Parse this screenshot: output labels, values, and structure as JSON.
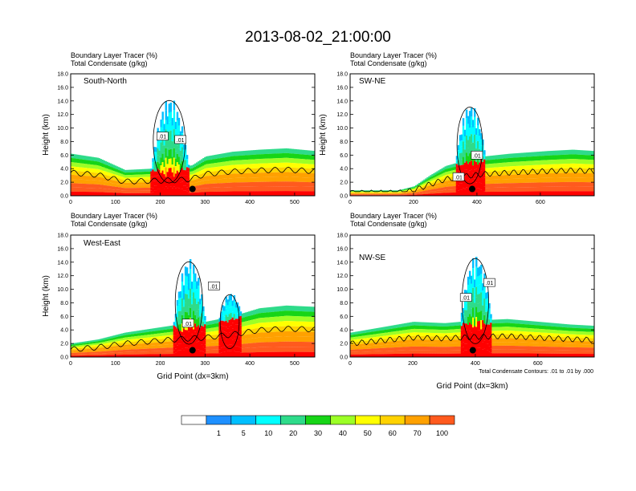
{
  "title": "2013-08-02_21:00:00",
  "colors": {
    "shades": [
      "#ffffff",
      "#1e90ff",
      "#00bfff",
      "#00ffff",
      "#2edb8a",
      "#17d517",
      "#9cff26",
      "#ffff00",
      "#ffd200",
      "#ffa100",
      "#ff5a1e",
      "#ff0000"
    ],
    "contour": "#000000",
    "marker": "#000000"
  },
  "colorbar": {
    "labels": [
      "1",
      "5",
      "10",
      "20",
      "30",
      "40",
      "50",
      "60",
      "70",
      "100"
    ]
  },
  "chart_data": [
    {
      "type": "heatmap",
      "title_line1": "Boundary Layer Tracer    (%)",
      "title_line2": "Total Condensate    (g/kg)",
      "panel_label": "South-North",
      "ylabel": "Height (km)",
      "xlabel": "",
      "xlim": [
        0,
        545
      ],
      "ylim": [
        0,
        18
      ],
      "xticks": [
        "0",
        "100",
        "200",
        "300",
        "400",
        "500"
      ],
      "xtick_values": [
        0,
        100,
        200,
        300,
        400,
        500
      ],
      "yticks": [
        "0.0",
        "2.0",
        "4.0",
        "6.0",
        "8.0",
        "10.0",
        "12.0",
        "14.0",
        "16.0",
        "18.0"
      ],
      "bl_profile": {
        "x": [
          0,
          60,
          120,
          180,
          240,
          270,
          300,
          360,
          420,
          480,
          545
        ],
        "top": [
          6.2,
          5.6,
          3.8,
          4.0,
          4.2,
          4.5,
          5.8,
          6.5,
          6.8,
          7.0,
          6.6
        ]
      },
      "convection": [
        {
          "x": [
            178,
            262
          ],
          "top": 14.5
        }
      ],
      "contour_labels": [
        {
          "text": ".01",
          "x": 205,
          "y": 8.8
        },
        {
          "text": ".01",
          "x": 245,
          "y": 8.3
        }
      ],
      "marker": {
        "x": 272,
        "y": 1.0
      }
    },
    {
      "type": "heatmap",
      "title_line1": "Boundary Layer Tracer    (%)",
      "title_line2": "Total Condensate    (g/kg)",
      "panel_label": "SW-NE",
      "ylabel": "Height (km)",
      "xlabel": "",
      "xlim": [
        0,
        770
      ],
      "ylim": [
        0,
        18
      ],
      "xticks": [
        "0",
        "200",
        "400",
        "600"
      ],
      "xtick_values": [
        0,
        200,
        400,
        600
      ],
      "yticks": [
        "0.0",
        "2.0",
        "4.0",
        "6.0",
        "8.0",
        "10.0",
        "12.0",
        "14.0",
        "16.0",
        "18.0"
      ],
      "bl_profile": {
        "x": [
          0,
          150,
          200,
          250,
          300,
          360,
          420,
          500,
          560,
          620,
          700,
          770
        ],
        "top": [
          0.8,
          0.8,
          1.4,
          3.0,
          4.4,
          5.2,
          5.8,
          6.2,
          6.4,
          6.6,
          6.8,
          6.6
        ]
      },
      "convection": [
        {
          "x": [
            330,
            425
          ],
          "top": 13.5
        }
      ],
      "contour_labels": [
        {
          "text": ".01",
          "x": 342,
          "y": 2.8
        },
        {
          "text": ".01",
          "x": 400,
          "y": 6.0
        }
      ],
      "marker": {
        "x": 385,
        "y": 1.0
      }
    },
    {
      "type": "heatmap",
      "title_line1": "Boundary Layer Tracer    (%)",
      "title_line2": "Total Condensate    (g/kg)",
      "panel_label": "West-East",
      "ylabel": "Height (km)",
      "xlabel": "Grid Point (dx=3km)",
      "xlim": [
        0,
        545
      ],
      "ylim": [
        0,
        18
      ],
      "xticks": [
        "0",
        "100",
        "200",
        "300",
        "400",
        "500"
      ],
      "xtick_values": [
        0,
        100,
        200,
        300,
        400,
        500
      ],
      "yticks": [
        "0.0",
        "2.0",
        "4.0",
        "6.0",
        "8.0",
        "10.0",
        "12.0",
        "14.0",
        "16.0",
        "18.0"
      ],
      "bl_profile": {
        "x": [
          0,
          60,
          120,
          180,
          240,
          300,
          360,
          420,
          480,
          545
        ],
        "top": [
          2.0,
          2.6,
          3.6,
          4.2,
          4.8,
          5.2,
          6.0,
          7.2,
          7.6,
          7.4
        ]
      },
      "convection": [
        {
          "x": [
            228,
            300
          ],
          "top": 14.5
        },
        {
          "x": [
            330,
            380
          ],
          "top": 9.5
        }
      ],
      "contour_labels": [
        {
          "text": ".01",
          "x": 262,
          "y": 5.0
        },
        {
          "text": ".01",
          "x": 320,
          "y": 10.5
        }
      ],
      "marker": {
        "x": 272,
        "y": 1.0
      }
    },
    {
      "type": "heatmap",
      "title_line1": "Boundary Layer Tracer    (%)",
      "title_line2": "Total Condensate    (g/kg)",
      "panel_label": "NW-SE",
      "ylabel": "",
      "xlabel": "Grid Point (dx=3km)",
      "xlim": [
        0,
        780
      ],
      "ylim": [
        0,
        18
      ],
      "xticks": [
        "0",
        "200",
        "400",
        "600"
      ],
      "xtick_values": [
        0,
        200,
        400,
        600
      ],
      "yticks": [
        "0.0",
        "2.0",
        "4.0",
        "6.0",
        "8.0",
        "10.0",
        "12.0",
        "14.0",
        "16.0",
        "18.0"
      ],
      "bl_profile": {
        "x": [
          0,
          100,
          200,
          300,
          400,
          500,
          600,
          700,
          780
        ],
        "top": [
          3.6,
          4.4,
          5.2,
          5.0,
          5.4,
          5.6,
          5.2,
          4.8,
          4.6
        ]
      },
      "convection": [
        {
          "x": [
            350,
            450
          ],
          "top": 15.0
        }
      ],
      "contour_labels": [
        {
          "text": ".01",
          "x": 370,
          "y": 8.8
        },
        {
          "text": ".01",
          "x": 445,
          "y": 11.0
        }
      ],
      "marker": {
        "x": 392,
        "y": 1.0
      },
      "footnote": "Total Condensate Contours: .01 to .01 by .000"
    }
  ]
}
